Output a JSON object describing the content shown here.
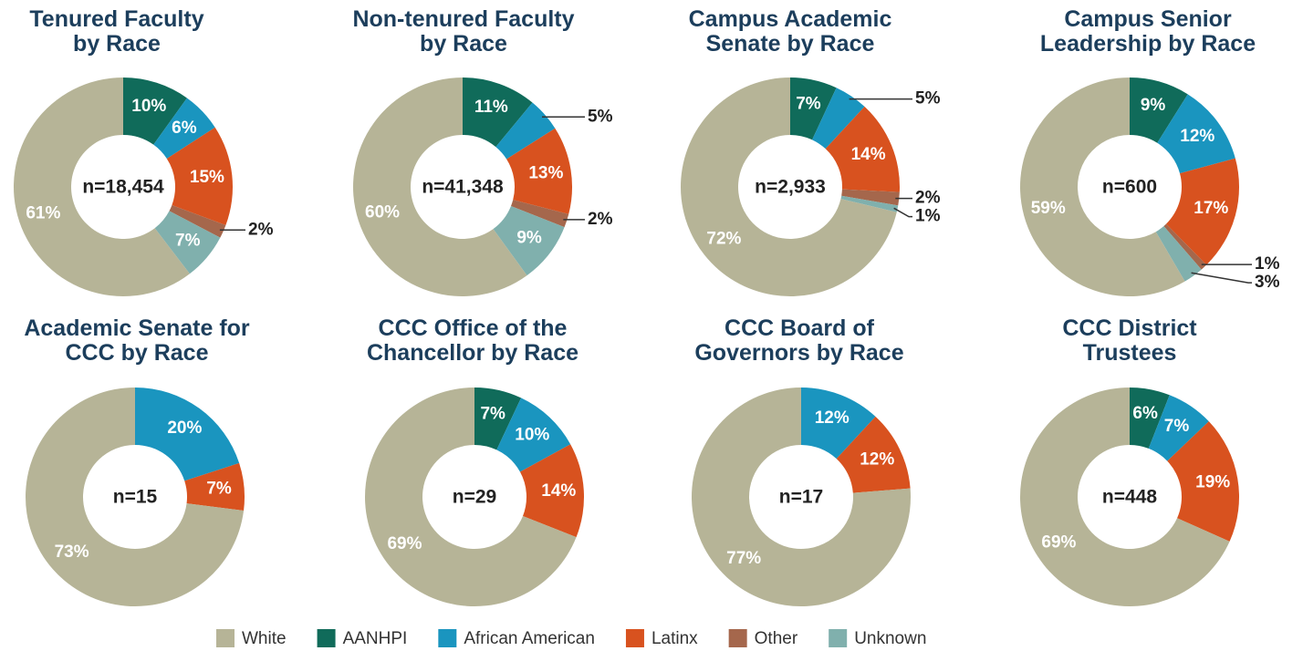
{
  "legend": {
    "labels": [
      "White",
      "AANHPI",
      "African American",
      "Latinx",
      "Other",
      "Unknown"
    ],
    "colors": [
      "#b6b497",
      "#106b5a",
      "#1a95bf",
      "#d8521f",
      "#a5674c",
      "#80b0ad"
    ]
  },
  "chart_data": [
    {
      "type": "donut",
      "title": "Tenured Faculty\nby Race",
      "annotation": "n=18,454",
      "values": [
        61,
        10,
        6,
        15,
        2,
        7
      ],
      "value_labels": [
        "61%",
        "10%",
        "6%",
        "15%",
        "2%",
        "7%"
      ]
    },
    {
      "type": "donut",
      "title": "Non-tenured Faculty\nby Race",
      "annotation": "n=41,348",
      "values": [
        60,
        11,
        5,
        13,
        2,
        9
      ],
      "value_labels": [
        "60%",
        "11%",
        "5%",
        "13%",
        "2%",
        "9%"
      ]
    },
    {
      "type": "donut",
      "title": "Campus Academic\nSenate by Race",
      "annotation": "n=2,933",
      "values": [
        72,
        7,
        5,
        14,
        2,
        1
      ],
      "value_labels": [
        "72%",
        "7%",
        "5%",
        "14%",
        "2%",
        "1%"
      ]
    },
    {
      "type": "donut",
      "title": "Campus Senior\nLeadership by Race",
      "annotation": "n=600",
      "values": [
        59,
        9,
        12,
        17,
        1,
        3
      ],
      "value_labels": [
        "59%",
        "9%",
        "12%",
        "17%",
        "1%",
        "3%"
      ]
    },
    {
      "type": "donut",
      "title": "Academic Senate for\nCCC by Race",
      "annotation": "n=15",
      "values": [
        73,
        null,
        20,
        7,
        null,
        null
      ],
      "value_labels": [
        "73%",
        null,
        "20%",
        "7%",
        null,
        null
      ]
    },
    {
      "type": "donut",
      "title": "CCC Office of the\nChancellor by Race",
      "annotation": "n=29",
      "values": [
        69,
        7,
        10,
        14,
        null,
        null
      ],
      "value_labels": [
        "69%",
        "7%",
        "10%",
        "14%",
        null,
        null
      ]
    },
    {
      "type": "donut",
      "title": "CCC Board of\nGovernors by Race",
      "annotation": "n=17",
      "values": [
        77,
        null,
        12,
        12,
        null,
        null
      ],
      "value_labels": [
        "77%",
        null,
        "12%",
        "12%",
        null,
        null
      ]
    },
    {
      "type": "donut",
      "title": "CCC District\nTrustees",
      "annotation": "n=448",
      "values": [
        69,
        6,
        7,
        19,
        null,
        null
      ],
      "value_labels": [
        "69%",
        "6%",
        "7%",
        "19%",
        null,
        null
      ]
    }
  ]
}
